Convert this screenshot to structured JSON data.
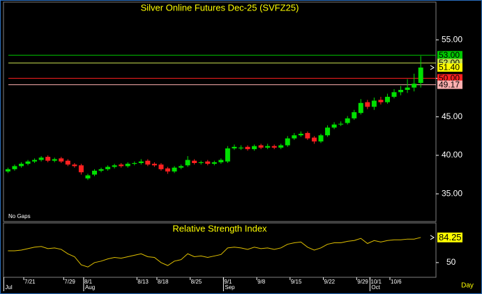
{
  "chart_data": {
    "type": "candlestick",
    "title": "Silver Online Futures Dec-25  (SVFZ25)",
    "note": "No Gaps",
    "period": "Day",
    "categories": [
      null,
      null,
      null,
      "7/21",
      null,
      null,
      null,
      null,
      null,
      "7/29",
      null,
      null,
      "8/1",
      null,
      null,
      null,
      null,
      null,
      null,
      null,
      "8/13",
      null,
      null,
      "8/18",
      null,
      null,
      null,
      null,
      "8/25",
      null,
      null,
      null,
      null,
      "9/1",
      null,
      null,
      null,
      null,
      "9/8",
      null,
      null,
      null,
      null,
      "9/15",
      null,
      null,
      null,
      null,
      "9/22",
      null,
      null,
      null,
      null,
      "9/29",
      null,
      "10/1",
      null,
      null,
      "10/6",
      null,
      null,
      null,
      null
    ],
    "months": [
      "Jul",
      null,
      null,
      null,
      null,
      null,
      null,
      null,
      null,
      null,
      null,
      null,
      "Aug",
      null,
      null,
      null,
      null,
      null,
      null,
      null,
      null,
      null,
      null,
      null,
      null,
      null,
      null,
      null,
      null,
      null,
      null,
      null,
      null,
      "Sep",
      null,
      null,
      null,
      null,
      null,
      null,
      null,
      null,
      null,
      null,
      null,
      null,
      null,
      null,
      null,
      null,
      null,
      null,
      null,
      null,
      null,
      "Oct",
      null,
      null,
      null,
      null,
      null,
      null,
      null
    ],
    "open": [
      37.9,
      38.2,
      38.6,
      38.9,
      39.2,
      39.4,
      39.8,
      39.3,
      39.6,
      39.3,
      38.8,
      38.7,
      37.0,
      37.5,
      38.0,
      38.2,
      38.5,
      38.8,
      38.6,
      38.9,
      39.0,
      39.3,
      38.9,
      38.8,
      38.3,
      37.9,
      38.4,
      38.7,
      39.3,
      39.0,
      39.2,
      38.9,
      39.1,
      39.2,
      40.9,
      40.9,
      41.1,
      40.8,
      41.3,
      41.0,
      41.2,
      41.0,
      41.3,
      42.2,
      42.6,
      42.9,
      42.3,
      41.8,
      42.6,
      43.6,
      44.0,
      44.2,
      44.8,
      45.5,
      46.9,
      46.3,
      47.2,
      46.9,
      47.6,
      48.2,
      48.5,
      48.8,
      49.4
    ],
    "high": [
      38.4,
      38.8,
      39.1,
      39.4,
      39.6,
      39.9,
      40.0,
      39.7,
      39.8,
      39.5,
      39.0,
      38.9,
      37.6,
      38.2,
      38.4,
      38.7,
      38.9,
      39.0,
      39.1,
      39.2,
      39.5,
      39.5,
      39.1,
      39.0,
      38.5,
      38.6,
      38.8,
      39.9,
      39.5,
      39.3,
      39.4,
      39.3,
      39.6,
      41.2,
      41.4,
      41.3,
      41.3,
      41.4,
      41.5,
      41.5,
      41.4,
      41.5,
      42.5,
      42.9,
      43.1,
      43.1,
      42.5,
      42.8,
      43.9,
      44.3,
      44.4,
      45.1,
      45.9,
      47.3,
      47.2,
      47.5,
      47.6,
      48.0,
      48.6,
      49.0,
      49.9,
      50.6,
      52.9
    ],
    "low": [
      37.7,
      38.0,
      38.4,
      38.7,
      39.0,
      39.2,
      39.1,
      39.1,
      39.0,
      38.6,
      38.4,
      37.5,
      36.8,
      37.3,
      37.8,
      38.0,
      38.3,
      38.4,
      38.4,
      38.7,
      38.8,
      38.6,
      38.5,
      38.0,
      37.6,
      37.7,
      38.2,
      38.5,
      38.8,
      38.8,
      38.7,
      38.7,
      38.9,
      39.0,
      40.7,
      40.7,
      40.6,
      40.6,
      40.8,
      40.8,
      40.8,
      40.8,
      41.1,
      42.0,
      42.4,
      42.0,
      41.5,
      41.6,
      42.4,
      43.4,
      43.8,
      44.0,
      44.6,
      45.3,
      46.0,
      45.9,
      46.6,
      46.7,
      47.4,
      47.8,
      48.1,
      48.3,
      48.8
    ],
    "close": [
      38.2,
      38.6,
      38.9,
      39.2,
      39.4,
      39.7,
      39.3,
      39.5,
      39.2,
      38.8,
      38.6,
      37.8,
      37.4,
      38.0,
      38.2,
      38.5,
      38.7,
      38.6,
      38.9,
      39.0,
      39.2,
      38.8,
      38.7,
      38.2,
      37.9,
      38.4,
      38.6,
      39.4,
      39.0,
      39.1,
      38.9,
      39.1,
      39.4,
      40.9,
      41.1,
      41.0,
      40.8,
      41.2,
      41.0,
      41.2,
      41.0,
      41.3,
      42.2,
      42.6,
      42.8,
      42.2,
      41.8,
      42.6,
      43.6,
      44.0,
      44.1,
      44.8,
      45.6,
      46.8,
      46.3,
      47.1,
      46.9,
      47.6,
      48.2,
      48.5,
      48.8,
      49.3,
      51.4
    ],
    "up_color": "#00e000",
    "down_color": "#ff2020",
    "ylim": [
      31.4,
      59.9
    ],
    "yticks": [
      {
        "value": 35,
        "label": "35.00"
      },
      {
        "value": 40,
        "label": "40.00"
      },
      {
        "value": 45,
        "label": "45.00"
      },
      {
        "value": 50,
        "label": "50.00"
      },
      {
        "value": 55,
        "label": "55.00"
      }
    ],
    "levels": [
      {
        "value": 53,
        "label": "53.00",
        "color": "#00c800",
        "line": true
      },
      {
        "value": 52,
        "label": "52.00",
        "color": "#c8e050",
        "line": true
      },
      {
        "value": 51.4,
        "label": "51.40",
        "color": "#ffff00",
        "line": false
      },
      {
        "value": 50,
        "label": "50.00",
        "color": "#ff2020",
        "line": true
      },
      {
        "value": 49.17,
        "label": "49.17",
        "color": "#ffb0b0",
        "line": true
      }
    ],
    "rsi": {
      "title": "Relative Strength Index",
      "color": "#e0c000",
      "ylim": [
        30,
        104
      ],
      "yticks": [
        50
      ],
      "values": [
        66,
        66,
        67,
        69,
        71,
        72,
        69,
        70,
        68,
        62,
        58,
        47,
        44,
        50,
        52,
        55,
        57,
        56,
        58,
        60,
        62,
        58,
        57,
        50,
        46,
        52,
        54,
        62,
        58,
        59,
        57,
        59,
        61,
        70,
        71,
        70,
        68,
        71,
        69,
        70,
        68,
        70,
        75,
        77,
        78,
        71,
        67,
        70,
        75,
        77,
        77,
        79,
        80,
        83,
        76,
        80,
        78,
        80,
        81,
        81,
        82,
        82,
        84.25
      ],
      "last": {
        "value": 84.25,
        "label": "84.25"
      }
    }
  }
}
